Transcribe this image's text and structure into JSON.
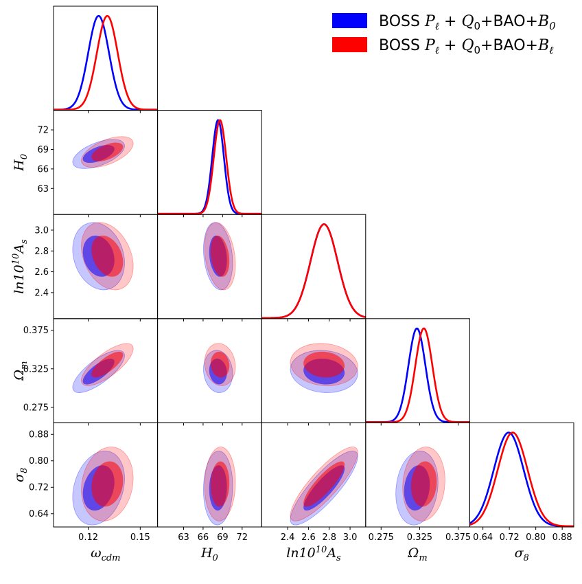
{
  "chart_data": {
    "type": "corner",
    "title": "",
    "colors": {
      "blue": "#0000ff",
      "red": "#ff0000",
      "overlap": "#800060"
    },
    "legend": {
      "placement": "top-right",
      "entries": [
        {
          "series": "blue",
          "prefix": "BOSS ",
          "math1": "P",
          "sub1": "ℓ",
          "mid": " + ",
          "math2": "Q",
          "sub2": "0",
          "suffix": "+BAO+",
          "math3": "B",
          "sub3": "0"
        },
        {
          "series": "red",
          "prefix": "BOSS ",
          "math1": "P",
          "sub1": "ℓ",
          "mid": " + ",
          "math2": "Q",
          "sub2": "0",
          "suffix": "+BAO+",
          "math3": "B",
          "sub3": "ℓ"
        }
      ]
    },
    "parameters": [
      {
        "key": "wcdm",
        "label_base": "ω",
        "label_sub": "cdm",
        "label_sup": "",
        "label_tail": "",
        "range": [
          0.1,
          0.16
        ],
        "ticks": [
          0.12,
          0.15
        ],
        "tick_labels": [
          "0.12",
          "0.15"
        ]
      },
      {
        "key": "H0",
        "label_base": "H",
        "label_sub": "0",
        "label_sup": "",
        "label_tail": "",
        "range": [
          59.0,
          75.0
        ],
        "ticks": [
          63,
          66,
          69,
          72
        ],
        "tick_labels": [
          "63",
          "66",
          "69",
          "72"
        ]
      },
      {
        "key": "lnAs",
        "label_base": "ln10",
        "label_sub": "",
        "label_sup": "10",
        "label_tail": "A",
        "label_tail_sub": "s",
        "range": [
          2.15,
          3.15
        ],
        "ticks": [
          2.4,
          2.6,
          2.8,
          3.0
        ],
        "tick_labels": [
          "2.4",
          "2.6",
          "2.8",
          "3.0"
        ]
      },
      {
        "key": "Om",
        "label_base": "Ω",
        "label_sub": "m",
        "label_sup": "",
        "label_tail": "",
        "range": [
          0.255,
          0.39
        ],
        "ticks": [
          0.275,
          0.325,
          0.375
        ],
        "tick_labels": [
          "0.275",
          "0.325",
          "0.375"
        ]
      },
      {
        "key": "sigma8",
        "label_base": "σ",
        "label_sub": "8",
        "label_sup": "",
        "label_tail": "",
        "range": [
          0.6,
          0.915
        ],
        "ticks": [
          0.64,
          0.72,
          0.8,
          0.88
        ],
        "tick_labels": [
          "0.64",
          "0.72",
          "0.80",
          "0.88"
        ]
      }
    ],
    "series": [
      {
        "name": "BOSS P_ℓ + Q_0+BAO+B_0",
        "color": "blue",
        "mean": [
          0.126,
          68.3,
          2.75,
          0.3215,
          0.718
        ],
        "sigma": [
          0.006,
          0.9,
          0.13,
          0.011,
          0.045
        ]
      },
      {
        "name": "BOSS P_ℓ + Q_0+BAO+B_ℓ",
        "color": "red",
        "mean": [
          0.131,
          68.6,
          2.75,
          0.3305,
          0.73
        ],
        "sigma": [
          0.006,
          0.95,
          0.13,
          0.011,
          0.045
        ]
      }
    ],
    "correlations": {
      "blue": {
        "H0|wcdm": 0.55,
        "lnAs|wcdm": -0.2,
        "lnAs|H0": -0.2,
        "Om|wcdm": 0.75,
        "Om|H0": -0.1,
        "Om|lnAs": -0.1,
        "sigma8|wcdm": 0.25,
        "sigma8|H0": 0.05,
        "sigma8|lnAs": 0.85,
        "sigma8|Om": 0.15
      },
      "red": {
        "H0|wcdm": 0.55,
        "lnAs|wcdm": -0.3,
        "lnAs|H0": -0.25,
        "Om|wcdm": 0.75,
        "Om|H0": -0.1,
        "Om|lnAs": -0.1,
        "sigma8|wcdm": 0.15,
        "sigma8|H0": 0.05,
        "sigma8|lnAs": 0.85,
        "sigma8|Om": 0.1
      }
    },
    "contour_levels_sigma": [
      1.52,
      2.49
    ]
  }
}
